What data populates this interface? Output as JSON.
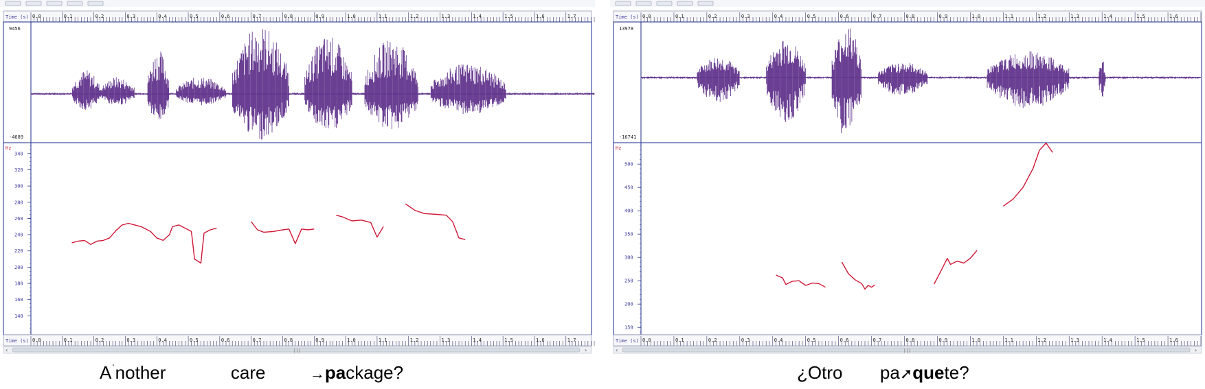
{
  "panels": [
    {
      "id": "left",
      "time_label": "Time (s)",
      "hz_label": "Hz",
      "x_range": [
        0.0,
        1.79
      ],
      "x_ticks": [
        "0.0",
        "0.1",
        "0.2",
        "0.3",
        "0.4",
        "0.5",
        "0.6",
        "0.7",
        "0.8",
        "0.9",
        "1.0",
        "1.1",
        "1.2",
        "1.3",
        "1.4",
        "1.5",
        "1.6",
        "1.7"
      ],
      "amp_max_label": "9456",
      "amp_min_label": "-4689",
      "y_range": [
        120,
        350
      ],
      "y_ticks": [
        "340",
        "320",
        "300",
        "280",
        "260",
        "240",
        "220",
        "200",
        "180",
        "160",
        "140"
      ],
      "syllables": [
        {
          "start": 0.13,
          "end": 0.22,
          "amp": 0.35
        },
        {
          "start": 0.22,
          "end": 0.33,
          "amp": 0.25
        },
        {
          "start": 0.37,
          "end": 0.44,
          "amp": 0.65
        },
        {
          "start": 0.46,
          "end": 0.62,
          "amp": 0.25
        },
        {
          "start": 0.64,
          "end": 0.82,
          "amp": 1.0
        },
        {
          "start": 0.87,
          "end": 1.02,
          "amp": 0.85
        },
        {
          "start": 1.06,
          "end": 1.23,
          "amp": 0.8
        },
        {
          "start": 1.27,
          "end": 1.51,
          "amp": 0.45
        }
      ],
      "pitch": [
        [
          [
            0.13,
            230
          ],
          [
            0.15,
            232
          ],
          [
            0.17,
            233
          ],
          [
            0.19,
            228
          ],
          [
            0.21,
            232
          ],
          [
            0.23,
            233
          ],
          [
            0.25,
            236
          ],
          [
            0.27,
            245
          ],
          [
            0.29,
            252
          ],
          [
            0.31,
            254
          ],
          [
            0.33,
            252
          ],
          [
            0.35,
            250
          ],
          [
            0.38,
            244
          ],
          [
            0.4,
            236
          ],
          [
            0.42,
            233
          ],
          [
            0.44,
            240
          ],
          [
            0.45,
            250
          ],
          [
            0.47,
            252
          ],
          [
            0.49,
            248
          ],
          [
            0.51,
            244
          ],
          [
            0.52,
            210
          ],
          [
            0.54,
            205
          ],
          [
            0.55,
            242
          ],
          [
            0.57,
            246
          ],
          [
            0.59,
            248
          ]
        ],
        [
          [
            0.7,
            256
          ],
          [
            0.72,
            246
          ],
          [
            0.74,
            243
          ],
          [
            0.77,
            244
          ],
          [
            0.8,
            246
          ],
          [
            0.82,
            247
          ],
          [
            0.84,
            229
          ],
          [
            0.86,
            247
          ],
          [
            0.88,
            246
          ],
          [
            0.9,
            247
          ]
        ],
        [
          [
            0.97,
            264
          ],
          [
            0.99,
            262
          ],
          [
            1.02,
            257
          ],
          [
            1.05,
            258
          ],
          [
            1.08,
            255
          ],
          [
            1.1,
            237
          ],
          [
            1.12,
            250
          ]
        ],
        [
          [
            1.19,
            278
          ],
          [
            1.22,
            270
          ],
          [
            1.25,
            266
          ],
          [
            1.29,
            265
          ],
          [
            1.32,
            264
          ],
          [
            1.34,
            256
          ],
          [
            1.36,
            236
          ],
          [
            1.38,
            234
          ]
        ]
      ]
    },
    {
      "id": "right",
      "time_label": "Time (s)",
      "hz_label": "Hz",
      "x_range": [
        0.0,
        1.7
      ],
      "x_ticks": [
        "0.0",
        "0.1",
        "0.2",
        "0.3",
        "0.4",
        "0.5",
        "0.6",
        "0.7",
        "0.8",
        "0.9",
        "1.0",
        "1.1",
        "1.2",
        "1.3",
        "1.4",
        "1.5",
        "1.6"
      ],
      "amp_max_label": "13978",
      "amp_min_label": "-16741",
      "y_range": [
        140,
        540
      ],
      "y_ticks": [
        "500",
        "450",
        "400",
        "350",
        "300",
        "250",
        "200",
        "150"
      ],
      "syllables": [
        {
          "start": 0.17,
          "end": 0.3,
          "amp": 0.4
        },
        {
          "start": 0.38,
          "end": 0.5,
          "amp": 0.75
        },
        {
          "start": 0.58,
          "end": 0.67,
          "amp": 1.0
        },
        {
          "start": 0.72,
          "end": 0.87,
          "amp": 0.3
        },
        {
          "start": 1.05,
          "end": 1.3,
          "amp": 0.5
        },
        {
          "start": 1.39,
          "end": 1.41,
          "amp": 0.35
        }
      ],
      "pitch": [
        [
          [
            0.41,
            262
          ],
          [
            0.43,
            256
          ],
          [
            0.44,
            242
          ],
          [
            0.46,
            249
          ],
          [
            0.48,
            250
          ],
          [
            0.5,
            240
          ],
          [
            0.52,
            245
          ],
          [
            0.54,
            244
          ],
          [
            0.56,
            236
          ]
        ],
        [
          [
            0.61,
            290
          ],
          [
            0.63,
            265
          ],
          [
            0.65,
            252
          ],
          [
            0.67,
            244
          ],
          [
            0.68,
            232
          ],
          [
            0.69,
            240
          ],
          [
            0.7,
            236
          ],
          [
            0.71,
            241
          ]
        ],
        [
          [
            0.89,
            243
          ],
          [
            0.91,
            270
          ],
          [
            0.93,
            298
          ],
          [
            0.94,
            285
          ],
          [
            0.96,
            292
          ],
          [
            0.98,
            288
          ],
          [
            1.0,
            298
          ],
          [
            1.02,
            315
          ]
        ],
        [
          [
            1.1,
            410
          ],
          [
            1.13,
            425
          ],
          [
            1.16,
            450
          ],
          [
            1.19,
            490
          ],
          [
            1.21,
            530
          ],
          [
            1.23,
            545
          ],
          [
            1.25,
            525
          ]
        ]
      ]
    }
  ],
  "captions": {
    "left": {
      "a1": "A",
      "stress": "ˈ",
      "a2": "nother",
      "care": "care",
      "arrow": "→",
      "bold": "pa",
      "rest": "ckage?"
    },
    "right": {
      "otro": "¿Otro",
      "pre": "pa",
      "arrow": "➚",
      "bold": "que",
      "rest": "te?"
    }
  },
  "colors": {
    "waveform": "#5a2a87",
    "pitch": "#d01835",
    "frame": "#1a2b8a",
    "axis_text": "#3d3a9a",
    "hz_label": "#c0283a"
  }
}
